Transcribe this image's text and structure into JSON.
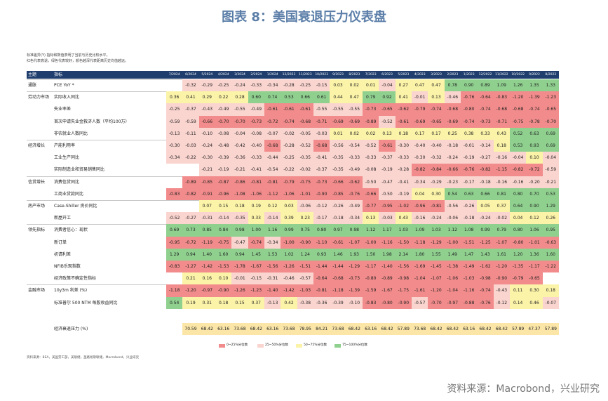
{
  "title": "图表 8：美国衰退压力仪表盘",
  "notes": [
    "标准差异(Y) 指标和数值表明了当前与历史比较水平。",
    "红色代表衰退，绿色代表较好，颜色越深代表距离历史均值越远。"
  ],
  "table": {
    "header": [
      "主题",
      "指标"
    ],
    "columns": [
      "7/2024",
      "6/2024",
      "5/2024",
      "4/2024",
      "3/2024",
      "2/2024",
      "1/2024",
      "12/2023",
      "11/2023",
      "10/2023",
      "9/2023",
      "8/2023",
      "7/2023",
      "6/2023",
      "5/2023",
      "4/2023",
      "3/2023",
      "2/2023",
      "1/2023",
      "12/2022",
      "11/2022",
      "10/2022",
      "9/2022",
      "8/2022"
    ],
    "rows": [
      {
        "group": "通胀",
        "name": "PCE YoY *",
        "values": [
          null,
          "-0.32",
          "-0.29",
          "-0.25",
          "-0.24",
          "-0.33",
          "-0.34",
          "-0.28",
          "-0.25",
          "-0.15",
          "0.03",
          "0.02",
          "0.01",
          "-0.04",
          "0.27",
          "0.47",
          "0.47",
          "0.78",
          "0.90",
          "0.89",
          "1.09",
          "1.26",
          "1.35",
          "1.33"
        ]
      },
      {
        "group": "劳动力市场",
        "name": "实际收入同比",
        "values": [
          "0.36",
          "0.41",
          "0.29",
          "0.22",
          "0.28",
          "0.60",
          "0.74",
          "0.53",
          "0.66",
          "0.61",
          "0.44",
          "0.47",
          "0.79",
          "0.92",
          "0.41",
          "-0.01",
          "0.13",
          "-0.46",
          "-0.76",
          "-0.64",
          "-0.83",
          "-1.20",
          "-1.39",
          "-1.23"
        ]
      },
      {
        "group": null,
        "name": "失业率差",
        "values": [
          "-0.25",
          "-0.37",
          "-0.43",
          "-0.49",
          "-0.55",
          "-0.49",
          "-0.61",
          "-0.61",
          "-0.61",
          "-0.55",
          "-0.55",
          "-0.55",
          "-0.73",
          "-0.65",
          "-0.62",
          "-0.79",
          "-0.74",
          "-0.68",
          "-0.80",
          "-0.74",
          "-0.68",
          "-0.68",
          "-0.74",
          "-0.65"
        ]
      },
      {
        "group": null,
        "name": "首次申请失业金救济人数（平均100万）",
        "values": [
          "-0.59",
          "-0.59",
          "-0.66",
          "-0.70",
          "-0.70",
          "-0.73",
          "-0.72",
          "-0.74",
          "-0.68",
          "-0.71",
          "-0.69",
          "-0.69",
          "-0.89",
          "-0.52",
          "-0.61",
          "-0.69",
          "-0.65",
          "-0.69",
          "-0.74",
          "-0.73",
          "-0.71",
          "-0.75",
          "-0.78",
          "-0.70"
        ]
      },
      {
        "group": null,
        "name": "非农就业人数同比",
        "values": [
          "-0.13",
          "-0.11",
          "-0.10",
          "-0.08",
          "-0.04",
          "-0.08",
          "-0.07",
          "-0.02",
          "-0.05",
          "-0.03",
          "0.01",
          "0.02",
          "0.02",
          "0.13",
          "0.18",
          "0.17",
          "0.17",
          "0.25",
          "0.38",
          "0.33",
          "0.43",
          "0.52",
          "0.63",
          "0.69"
        ]
      },
      {
        "group": "经济增长",
        "name": "产能利用率",
        "values": [
          "-0.30",
          "-0.03",
          "-0.24",
          "-0.48",
          "-0.42",
          "-0.40",
          "-0.68",
          "-0.28",
          "-0.52",
          "-0.68",
          "-0.56",
          "-0.54",
          "-0.52",
          "-0.61",
          "-0.30",
          "-0.40",
          "-0.40",
          "-0.18",
          "-0.01",
          "-0.14",
          "0.18",
          "0.53",
          "0.93",
          "0.69"
        ]
      },
      {
        "group": null,
        "name": "工业生产同比",
        "values": [
          "-0.34",
          "-0.22",
          "-0.30",
          "-0.39",
          "-0.36",
          "-0.33",
          "-0.44",
          "-0.25",
          "-0.35",
          "-0.41",
          "-0.35",
          "-0.33",
          "-0.33",
          "-0.37",
          "-0.33",
          "-0.30",
          "-0.32",
          "-0.24",
          "-0.19",
          "-0.27",
          "-0.16",
          "-0.04",
          "0.10",
          "-0.04"
        ]
      },
      {
        "group": null,
        "name": "实际制造业和贸易销售同比",
        "values": [
          null,
          null,
          "-0.21",
          "-0.19",
          "-0.21",
          "-0.41",
          "-0.54",
          "-0.22",
          "-0.02",
          "-0.37",
          "-0.35",
          "-0.49",
          "-0.08",
          "-0.19",
          "-0.28",
          "-0.82",
          "-0.84",
          "-0.66",
          "-0.76",
          "-0.82",
          "-1.15",
          "-0.82",
          "-0.72",
          "-0.59"
        ]
      },
      {
        "group": "信贷增长",
        "name": "消费信贷同比",
        "values": [
          null,
          "-0.89",
          "-0.85",
          "-0.87",
          "-0.86",
          "-0.81",
          "-0.81",
          "-0.79",
          "-0.75",
          "-0.73",
          "-0.66",
          "-0.62",
          "-0.50",
          "-0.47",
          "-0.41",
          "-0.34",
          "-0.29",
          "-0.23",
          "-0.17",
          "-0.18",
          "-0.16",
          "-0.16",
          "-0.20",
          "-0.21"
        ]
      },
      {
        "group": null,
        "name": "工商业贷款同比",
        "values": [
          "-0.83",
          "-0.82",
          "-0.91",
          "-0.96",
          "-1.08",
          "-1.06",
          "-1.12",
          "-1.06",
          "-1.01",
          "-0.90",
          "-0.85",
          "-0.76",
          "-0.66",
          "-0.50",
          "-0.19",
          "0.04",
          "0.30",
          "0.54",
          "0.63",
          "0.66",
          "0.81",
          "0.80",
          "0.70",
          "0.53"
        ]
      },
      {
        "group": "房产市场",
        "name": "Case-Shiller 房价同比",
        "values": [
          null,
          null,
          "0.07",
          "0.15",
          "0.18",
          "0.19",
          "0.12",
          "0.03",
          "-0.06",
          "-0.12",
          "-0.26",
          "-0.49",
          "-0.77",
          "-0.95",
          "-1.02",
          "-0.96",
          "-0.81",
          "-0.56",
          "-0.26",
          "0.05",
          "0.37",
          "0.64",
          "0.90",
          "1.29"
        ]
      },
      {
        "group": null,
        "name": "新屋开工",
        "values": [
          "-0.52",
          "-0.27",
          "-0.31",
          "-0.14",
          "-0.35",
          "0.33",
          "-0.14",
          "0.39",
          "0.23",
          "-0.17",
          "-0.18",
          "-0.34",
          "0.13",
          "-0.03",
          "0.43",
          "-0.16",
          "-0.24",
          "-0.06",
          "-0.18",
          "-0.24",
          "-0.02",
          "0.04",
          "0.12",
          "0.26"
        ]
      },
      {
        "group": "领先指标",
        "name": "消费者信心：现状",
        "values": [
          "0.69",
          "0.73",
          "0.85",
          "0.84",
          "0.98",
          "1.00",
          "1.16",
          "0.99",
          "0.75",
          "0.80",
          "0.97",
          "0.98",
          "1.12",
          "1.17",
          "1.03",
          "1.09",
          "1.03",
          "1.12",
          "1.08",
          "0.99",
          "0.79",
          "0.80",
          "1.06",
          "0.95"
        ]
      },
      {
        "group": null,
        "name": "新订单",
        "values": [
          "-0.95",
          "-0.72",
          "-1.19",
          "-0.75",
          "-0.47",
          "-0.74",
          "-0.34",
          "-1.00",
          "-0.90",
          "-1.10",
          "-0.61",
          "-1.07",
          "-1.00",
          "-1.16",
          "-1.50",
          "-1.18",
          "-1.29",
          "-1.00",
          "-1.51",
          "-1.25",
          "-1.07",
          "-0.80",
          "-1.01",
          "-0.63"
        ]
      },
      {
        "group": null,
        "name": "初请利差",
        "values": [
          "1.29",
          "0.94",
          "1.40",
          "1.60",
          "0.94",
          "1.45",
          "1.53",
          "1.02",
          "1.24",
          "0.93",
          "1.46",
          "1.93",
          "1.50",
          "1.98",
          "2.14",
          "1.80",
          "1.55",
          "1.49",
          "1.47",
          "1.43",
          "1.61",
          "1.20",
          "1.36",
          "1.60"
        ]
      },
      {
        "group": null,
        "name": "NFIB乐观指数",
        "values": [
          "-0.83",
          "-1.27",
          "-1.42",
          "-1.53",
          "-1.78",
          "-1.67",
          "-1.56",
          "-1.26",
          "-1.51",
          "-1.44",
          "-1.44",
          "-1.29",
          "-1.17",
          "-1.40",
          "-1.56",
          "-1.69",
          "-1.45",
          "-1.38",
          "-1.49",
          "-1.62",
          "-1.20",
          "-1.35",
          "-1.17",
          "-1.22"
        ]
      },
      {
        "group": null,
        "name": "经济政策不确定性指标",
        "values": [
          null,
          "0.21",
          "0.16",
          "0.10",
          "-0.01",
          "-0.15",
          "-0.31",
          "-0.46",
          "-0.57",
          "-0.64",
          "-0.68",
          "-0.73",
          "-0.80",
          "-0.89",
          "-0.98",
          "-1.04",
          "-1.07",
          "-1.06",
          "-1.03",
          "-0.98",
          "-0.90",
          "-0.79",
          "-0.65",
          null
        ]
      },
      {
        "group": "金融市场",
        "name": "10y3m 利差 (%)",
        "values": [
          "-1.18",
          "-1.20",
          "-0.97",
          "-0.90",
          "-1.26",
          "-1.23",
          "-1.40",
          "-1.42",
          "-1.03",
          "-0.81",
          "-1.18",
          "-1.39",
          "-1.59",
          "-1.67",
          "-1.75",
          "-1.61",
          "-1.20",
          "-1.04",
          "-1.16",
          "-0.74",
          "-0.43",
          "0.11",
          "0.30",
          "0.18"
        ]
      },
      {
        "group": null,
        "name": "标准普尔 500 NTM 每股收益同比",
        "values": [
          "0.54",
          "0.19",
          "0.31",
          "0.18",
          "0.15",
          "0.37",
          "-0.13",
          "0.42",
          "-0.38",
          "-0.36",
          "-0.39",
          "-0.10",
          "-0.83",
          "-0.80",
          "-0.90",
          "-0.57",
          "-0.70",
          "-0.97",
          "-0.88",
          "-0.76",
          "-0.12",
          "0.14",
          "0.46",
          "-0.07"
        ]
      }
    ],
    "total": {
      "name": "经济衰退压力 (%)",
      "values": [
        null,
        "70.59",
        "68.42",
        "63.16",
        "73.68",
        "68.42",
        "63.16",
        "73.68",
        "78.95",
        "84.21",
        "73.68",
        "68.42",
        "63.16",
        "68.42",
        "57.89",
        "73.68",
        "68.42",
        "68.42",
        "63.16",
        "68.42",
        "68.42",
        "57.89",
        "47.37",
        "57.89"
      ]
    }
  },
  "legend": [
    {
      "label": "0~25%分位数",
      "color": "#f28b8b"
    },
    {
      "label": "25~50%分位数",
      "color": "#fad4cf"
    },
    {
      "label": "50~75%分位数",
      "color": "#fbf3a8"
    },
    {
      "label": "75~100%分位数",
      "color": "#8fd08f"
    }
  ],
  "footnote": "资料来源：BEA，美国劳工部，美联储，圣路易斯联储，Macrobond，兴业研究",
  "source": "资料来源：Macrobond，兴业研究"
}
